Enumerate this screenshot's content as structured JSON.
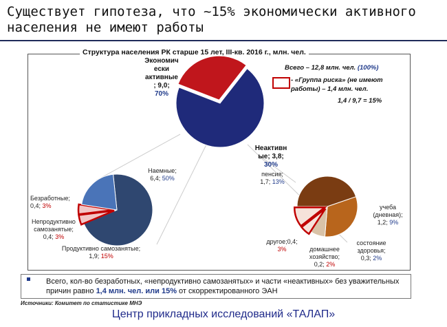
{
  "slide": {
    "title": "Существует гипотеза, что ~15% экономически активного населения не имеют работы"
  },
  "chart_data": [
    {
      "type": "pie",
      "title": "Структура населения РК старше 15 лет, III-кв. 2016 г., млн. чел.",
      "slices": [
        {
          "name": "Экономически активные",
          "value": 9.0,
          "percent": "70%",
          "color": "#1f2a7a"
        },
        {
          "name": "Неактивные",
          "value": 3.8,
          "percent": "30%",
          "color": "#c0161c"
        }
      ]
    },
    {
      "type": "pie",
      "slices": [
        {
          "name": "Наемные",
          "value": 6.4,
          "percent": "50%",
          "color": "#2f4770"
        },
        {
          "name": "Безработные",
          "value": 0.4,
          "percent": "3%",
          "color": "#f2c6c6",
          "risk": true
        },
        {
          "name": "Непродуктивно самозанятые",
          "value": 0.4,
          "percent": "3%",
          "color": "#f2c6c6",
          "risk": true
        },
        {
          "name": "Продуктивно самозанятые",
          "value": 1.9,
          "percent": "15%",
          "color": "#4a74b8"
        }
      ]
    },
    {
      "type": "pie",
      "slices": [
        {
          "name": "пенсия",
          "value": 1.7,
          "percent": "13%",
          "color": "#7a3c12"
        },
        {
          "name": "учеба (дневная)",
          "value": 1.2,
          "percent": "9%",
          "color": "#b8651c"
        },
        {
          "name": "состояние здоровья",
          "value": 0.3,
          "percent": "2%",
          "color": "#d9c3a8"
        },
        {
          "name": "домашнее хозяйство",
          "value": 0.2,
          "percent": "2%",
          "color": "#f6e2da",
          "risk": true
        },
        {
          "name": "другое",
          "value": 0.4,
          "percent": "3%",
          "color": "#f6e2da",
          "risk": true
        }
      ]
    }
  ],
  "labels": {
    "active_l1": "Экономич",
    "active_l2": "ески",
    "active_l3": "активные",
    "active_l4": "; 9,0;",
    "active_pct": "70%",
    "inactive_l1": "Неактивн",
    "inactive_l2": "ые; 3,8;",
    "inactive_pct": "30%",
    "hired": "Наемные;",
    "hired_val": "6,4;",
    "hired_pct": "50%",
    "unemployed": "Безработные;",
    "unemployed_val": "0,4;",
    "unemployed_pct": "3%",
    "unprod_l1": "Непродуктивно",
    "unprod_l2": "самозанятые;",
    "unprod_val": "0,4;",
    "unprod_pct": "3%",
    "prod_l1": "Продуктивно самозанятые;",
    "prod_val": "1,9;",
    "prod_pct": "15%",
    "pension": "пенсия;",
    "pension_val": "1,7;",
    "pension_pct": "13%",
    "study_l1": "учеба",
    "study_l2": "(дневная);",
    "study_val": "1,2;",
    "study_pct": "9%",
    "health_l1": "состояние",
    "health_l2": "здоровья;",
    "health_val": "0,3;",
    "health_pct": "2%",
    "other_l1": "другое;0,4;",
    "other_pct": "3%",
    "home_l1": "домашнее",
    "home_l2": "хозяйство;",
    "home_val": "0,2;",
    "home_pct": "2%"
  },
  "info": {
    "total_text": "Всего – 12,8 млн. чел.",
    "total_pct": "(100%)",
    "risk_l1": "- «Группа риска» (не имеют",
    "risk_l2": "работы) – 1,4 млн. чел.",
    "ratio": "1,4 / 9,7 = 15%"
  },
  "note": {
    "before": "Всего, кол-во безработных, «непродуктивно самозанятых» и части «неактивных» без уважительных причин равно",
    "highlight": "1,4 млн. чел. или 15%",
    "after": "от скорректированного ЭАН"
  },
  "source": "Источники: Комитет по статистике МНЭ",
  "footer": "Центр прикладных исследований «ТАЛАП»"
}
